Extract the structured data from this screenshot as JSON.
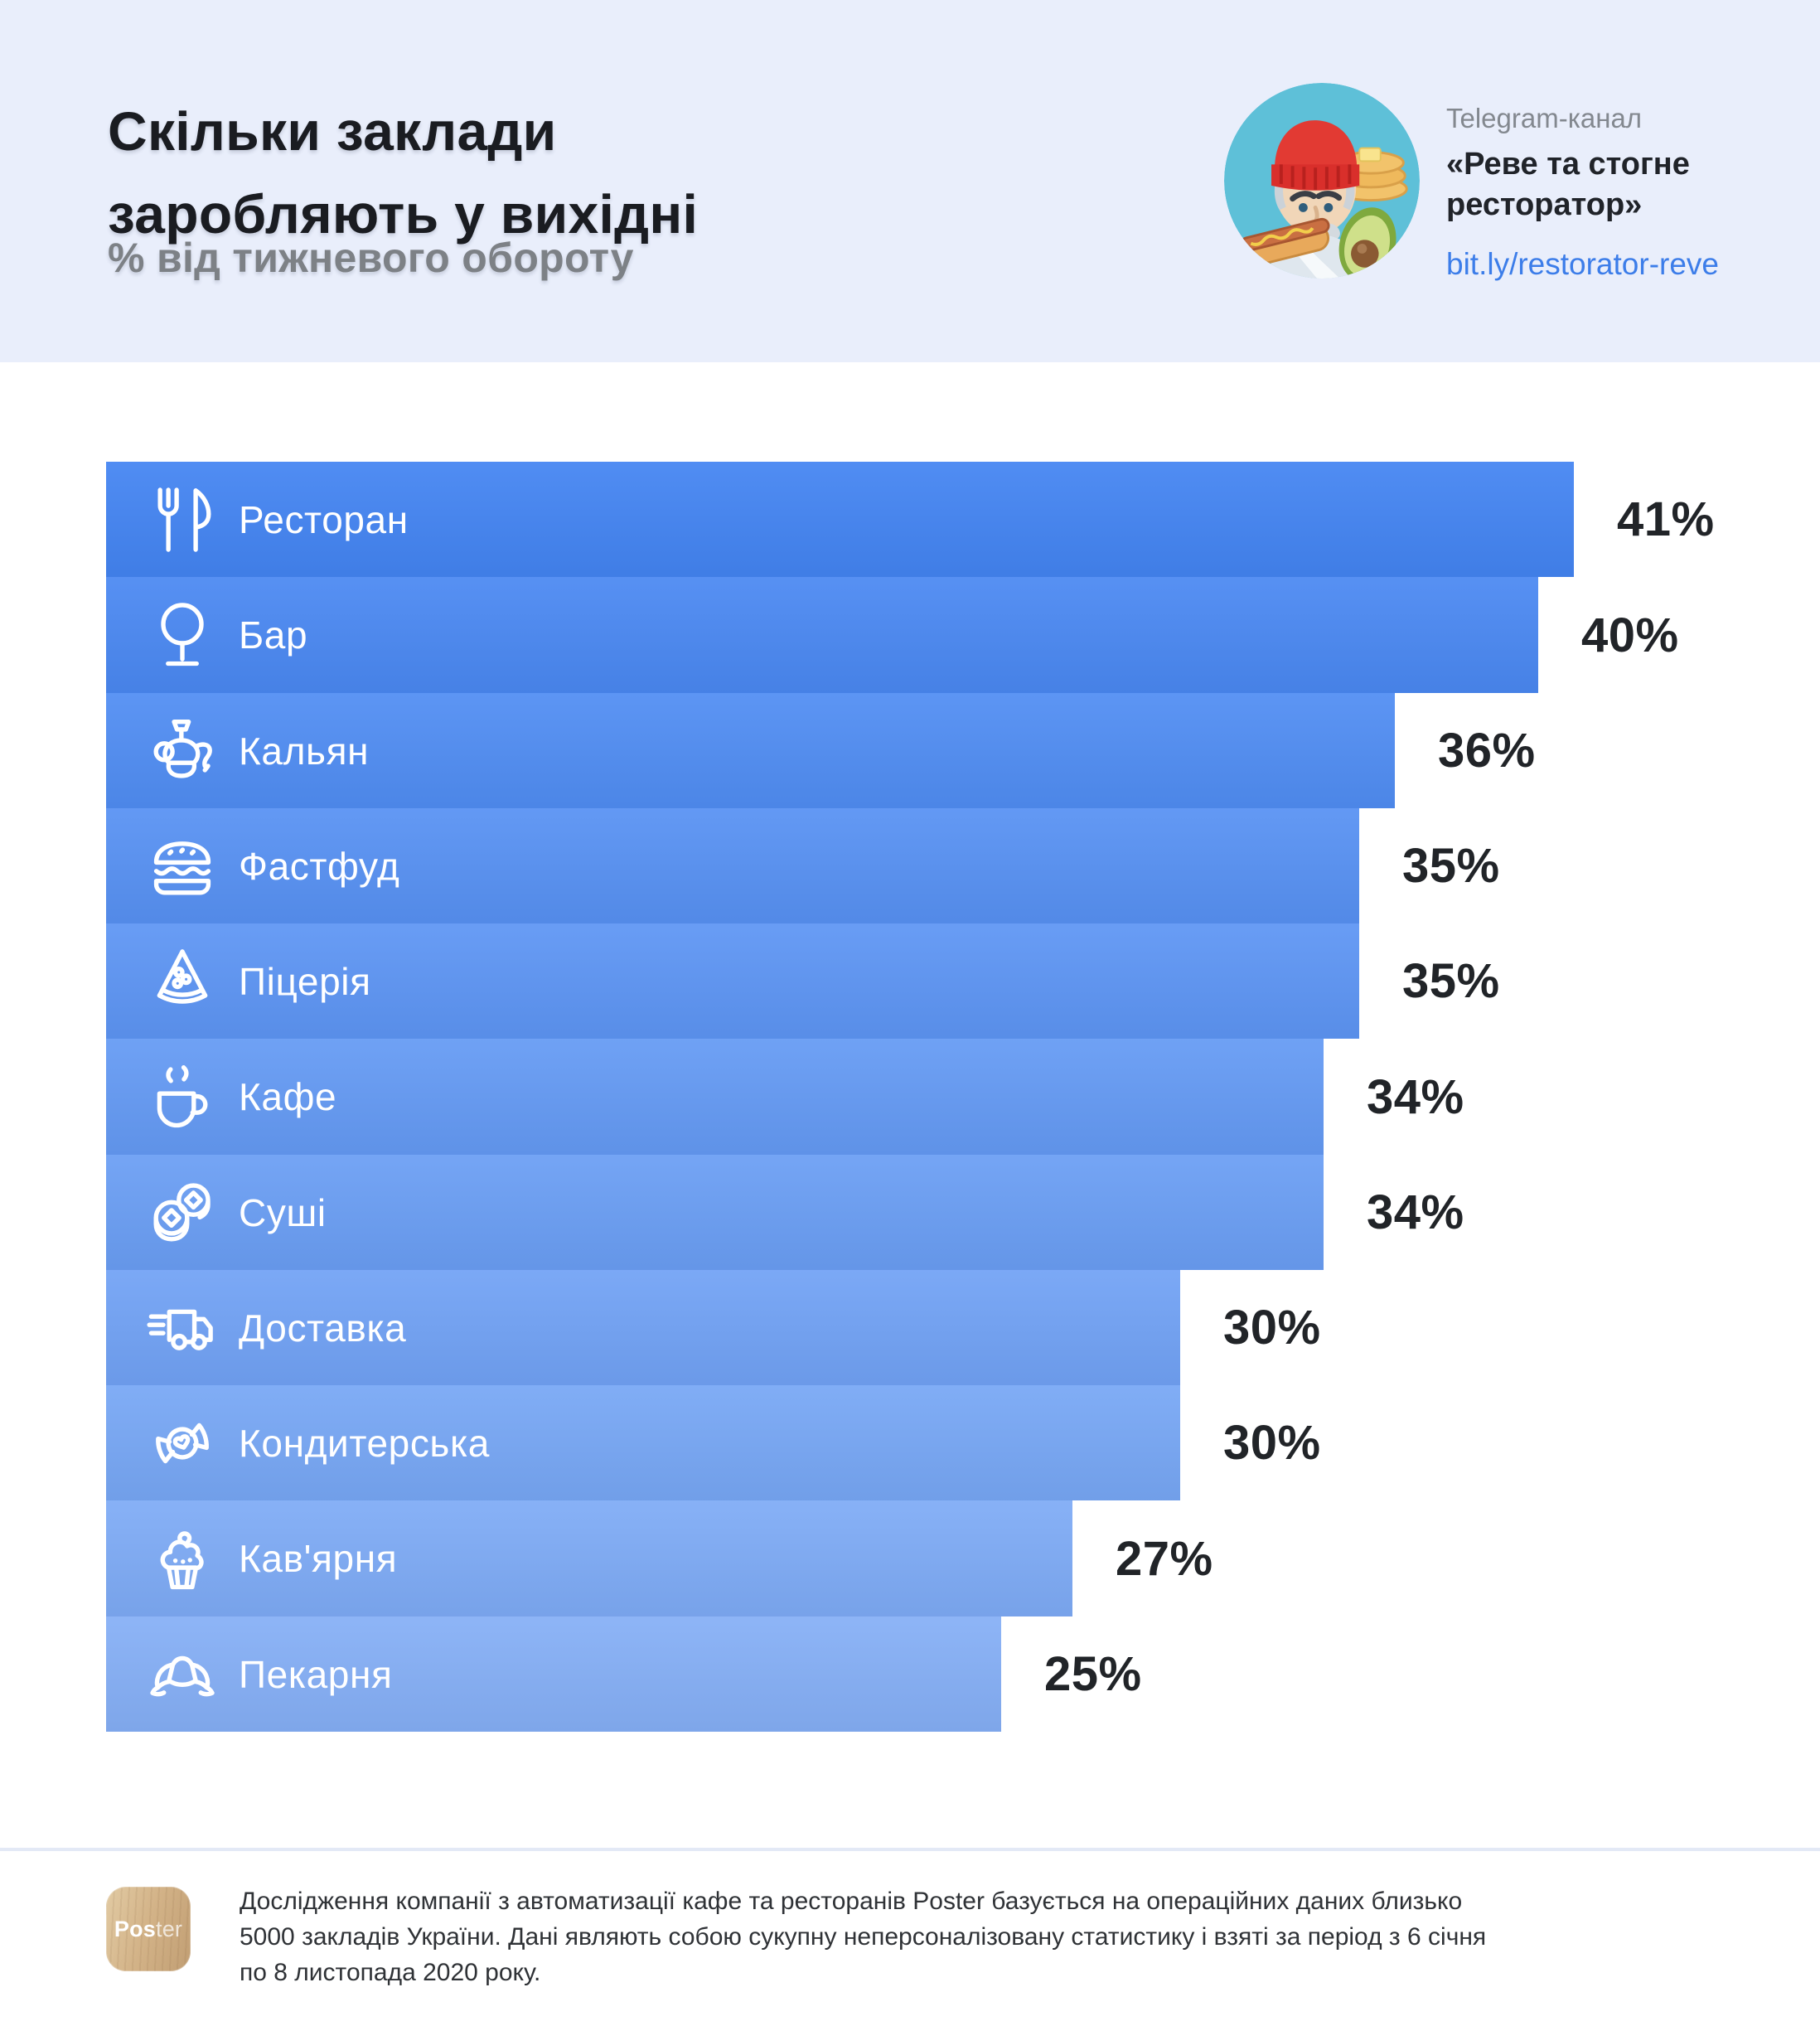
{
  "header": {
    "title_line1": "Скільки заклади",
    "title_line2": "заробляють у вихідні",
    "subtitle": "% від тижневого обороту",
    "background": "#E9EEFB",
    "telegram": {
      "label": "Telegram-канал",
      "channel_line1": "«Реве та стогне",
      "channel_line2": "ресторатор»",
      "link": "bit.ly/restorator-reve",
      "link_color": "#3C7DE9"
    }
  },
  "chart_data": {
    "type": "bar",
    "orientation": "horizontal",
    "title": "Скільки заклади заробляють у вихідні",
    "subtitle": "% від тижневого обороту",
    "unit": "%",
    "xlim": [
      0,
      41
    ],
    "grid": false,
    "legend": false,
    "value_label_position": "outside-right",
    "categories": [
      "Ресторан",
      "Бар",
      "Кальян",
      "Фастфуд",
      "Піцерія",
      "Кафе",
      "Суші",
      "Доставка",
      "Кондитерська",
      "Кав'ярня",
      "Пекарня"
    ],
    "values": [
      41,
      40,
      36,
      35,
      35,
      34,
      34,
      30,
      30,
      27,
      25
    ],
    "value_label_texts": [
      "41%",
      "40%",
      "36%",
      "35%",
      "35%",
      "34%",
      "34%",
      "30%",
      "30%",
      "27%",
      "25%"
    ],
    "icons": [
      "fork-knife",
      "wine-glass",
      "hookah",
      "burger",
      "pizza-slice",
      "coffee-cup",
      "sushi-rolls",
      "delivery-truck",
      "candy",
      "cupcake",
      "croissant"
    ],
    "bar_colors": [
      "#4384F2",
      "#4A88F2",
      "#508DF3",
      "#5791F3",
      "#5D95F4",
      "#649AF4",
      "#6A9EF4",
      "#71A2F5",
      "#77A7F5",
      "#7EABF6",
      "#85AFF6"
    ],
    "category_label_color": "#FFFFFF",
    "value_label_color": "#212428"
  },
  "footer": {
    "logo_text_bold": "Pos",
    "logo_text_light": "ter",
    "lines": [
      "Дослідження компанії з автоматизації кафе та ресторанів Poster базується на операційних даних близько",
      "5000 закладів України. Дані являють собою сукупну неперсоналізовану статистику і взяті за період з 6 січня",
      "по 8 листопада 2020 року."
    ]
  }
}
